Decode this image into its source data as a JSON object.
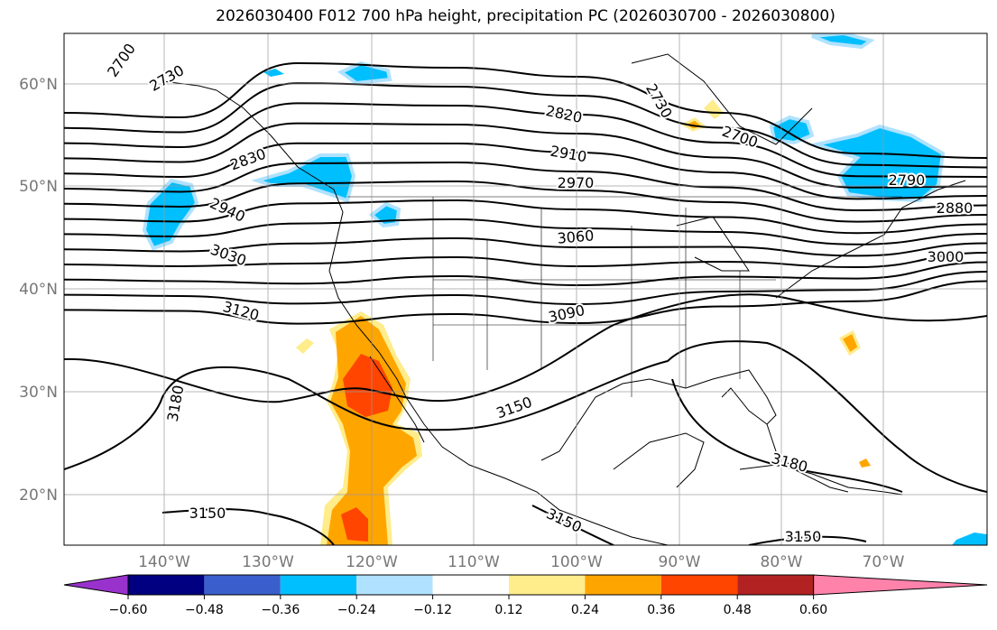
{
  "title": "2026030400 F012 700 hPa height, precipitation PC (2026030700 - 2026030800)",
  "lat_labels": [
    "60°N",
    "50°N",
    "40°N",
    "30°N",
    "20°N"
  ],
  "lon_labels": [
    "140°W",
    "130°W",
    "120°W",
    "110°W",
    "100°W",
    "90°W",
    "80°W",
    "70°W"
  ],
  "contour_levels": [
    2730,
    2760,
    2790,
    2820,
    2850,
    2880,
    2910,
    2940,
    2970,
    3000,
    3030,
    3060,
    3090,
    3120
  ],
  "contour_labels": [
    "2700",
    "2730",
    "2830",
    "2940",
    "3030",
    "3120",
    "3180",
    "3150",
    "2820",
    "2910",
    "2970",
    "3060",
    "3090",
    "3150",
    "3180",
    "3150",
    "3150",
    "2730",
    "2700",
    "2790",
    "2880",
    "3000"
  ],
  "colorbar": {
    "colors": [
      "#9932cc",
      "#000080",
      "#3a5fcd",
      "#00bfff",
      "#b0e2ff",
      "#ffffff",
      "#ffec8b",
      "#ffa500",
      "#ff4500",
      "#b22222",
      "#ff82ab"
    ],
    "labels": [
      "−0.60",
      "−0.48",
      "−0.36",
      "−0.24",
      "−0.12",
      "0.12",
      "0.24",
      "0.36",
      "0.48",
      "0.60"
    ]
  }
}
